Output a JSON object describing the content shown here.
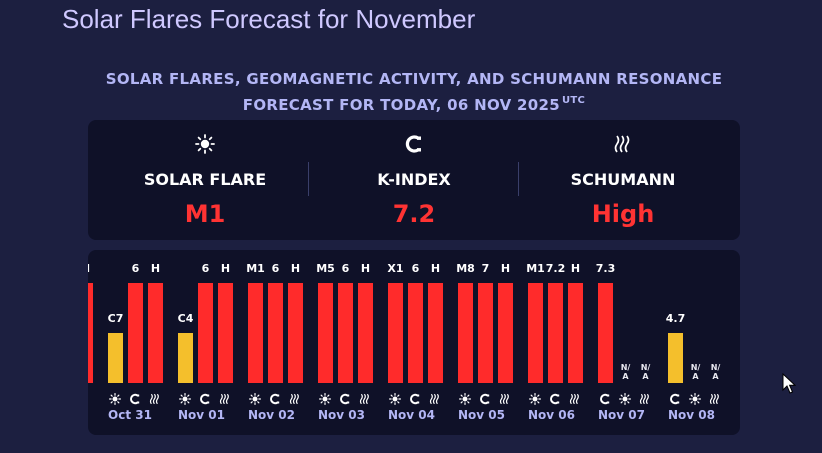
{
  "page": {
    "title": "Solar Flares Forecast for November"
  },
  "heading": {
    "line1": "SOLAR FLARES, GEOMAGNETIC ACTIVITY, AND SCHUMANN RESONANCE",
    "line2": "FORECAST FOR TODAY, 06 NOV 2025",
    "timezone": "UTC"
  },
  "summary": [
    {
      "icon": "sun-icon",
      "label": "SOLAR FLARE",
      "value": "M1"
    },
    {
      "icon": "magnet-icon",
      "label": "K-INDEX",
      "value": "7.2"
    },
    {
      "icon": "wave-icon",
      "label": "SCHUMANN",
      "value": "High"
    }
  ],
  "colors": {
    "high": "#ff2b2b",
    "medium": "#f4bf2c",
    "value_text": "#ff3333",
    "accent_text": "#b3b6f5"
  },
  "chart_data": {
    "type": "bar",
    "days": [
      {
        "date": "",
        "cut": true,
        "bars": [
          {
            "kind": "wave",
            "label": "H",
            "level": "high",
            "height": 1.0
          }
        ]
      },
      {
        "date": "Oct 31",
        "bars": [
          {
            "kind": "sun",
            "label": "C7",
            "level": "medium",
            "height": 0.5
          },
          {
            "kind": "magnet",
            "label": "6",
            "level": "high",
            "height": 1.0
          },
          {
            "kind": "wave",
            "label": "H",
            "level": "high",
            "height": 1.0
          }
        ]
      },
      {
        "date": "Nov 01",
        "bars": [
          {
            "kind": "sun",
            "label": "C4",
            "level": "medium",
            "height": 0.5
          },
          {
            "kind": "magnet",
            "label": "6",
            "level": "high",
            "height": 1.0
          },
          {
            "kind": "wave",
            "label": "H",
            "level": "high",
            "height": 1.0
          }
        ]
      },
      {
        "date": "Nov 02",
        "bars": [
          {
            "kind": "sun",
            "label": "M1",
            "level": "high",
            "height": 1.0
          },
          {
            "kind": "magnet",
            "label": "6",
            "level": "high",
            "height": 1.0
          },
          {
            "kind": "wave",
            "label": "H",
            "level": "high",
            "height": 1.0
          }
        ]
      },
      {
        "date": "Nov 03",
        "bars": [
          {
            "kind": "sun",
            "label": "M5",
            "level": "high",
            "height": 1.0
          },
          {
            "kind": "magnet",
            "label": "6",
            "level": "high",
            "height": 1.0
          },
          {
            "kind": "wave",
            "label": "H",
            "level": "high",
            "height": 1.0
          }
        ]
      },
      {
        "date": "Nov 04",
        "bars": [
          {
            "kind": "sun",
            "label": "X1",
            "level": "high",
            "height": 1.0
          },
          {
            "kind": "magnet",
            "label": "6",
            "level": "high",
            "height": 1.0
          },
          {
            "kind": "wave",
            "label": "H",
            "level": "high",
            "height": 1.0
          }
        ]
      },
      {
        "date": "Nov 05",
        "bars": [
          {
            "kind": "sun",
            "label": "M8",
            "level": "high",
            "height": 1.0
          },
          {
            "kind": "magnet",
            "label": "7",
            "level": "high",
            "height": 1.0
          },
          {
            "kind": "wave",
            "label": "H",
            "level": "high",
            "height": 1.0
          }
        ]
      },
      {
        "date": "Nov 06",
        "bars": [
          {
            "kind": "sun",
            "label": "M1",
            "level": "high",
            "height": 1.0
          },
          {
            "kind": "magnet",
            "label": "7.2",
            "level": "high",
            "height": 1.0
          },
          {
            "kind": "wave",
            "label": "H",
            "level": "high",
            "height": 1.0
          }
        ]
      },
      {
        "date": "Nov 07",
        "bars": [
          {
            "kind": "magnet",
            "label": "7.3",
            "level": "high",
            "height": 1.0
          },
          {
            "kind": "sun",
            "label": "N/A",
            "level": "none",
            "height": 0
          },
          {
            "kind": "wave",
            "label": "N/A",
            "level": "none",
            "height": 0
          }
        ]
      },
      {
        "date": "Nov 08",
        "bars": [
          {
            "kind": "magnet",
            "label": "4.7",
            "level": "medium",
            "height": 0.5
          },
          {
            "kind": "sun",
            "label": "N/A",
            "level": "none",
            "height": 0
          },
          {
            "kind": "wave",
            "label": "N/A",
            "level": "none",
            "height": 0
          }
        ]
      }
    ]
  }
}
